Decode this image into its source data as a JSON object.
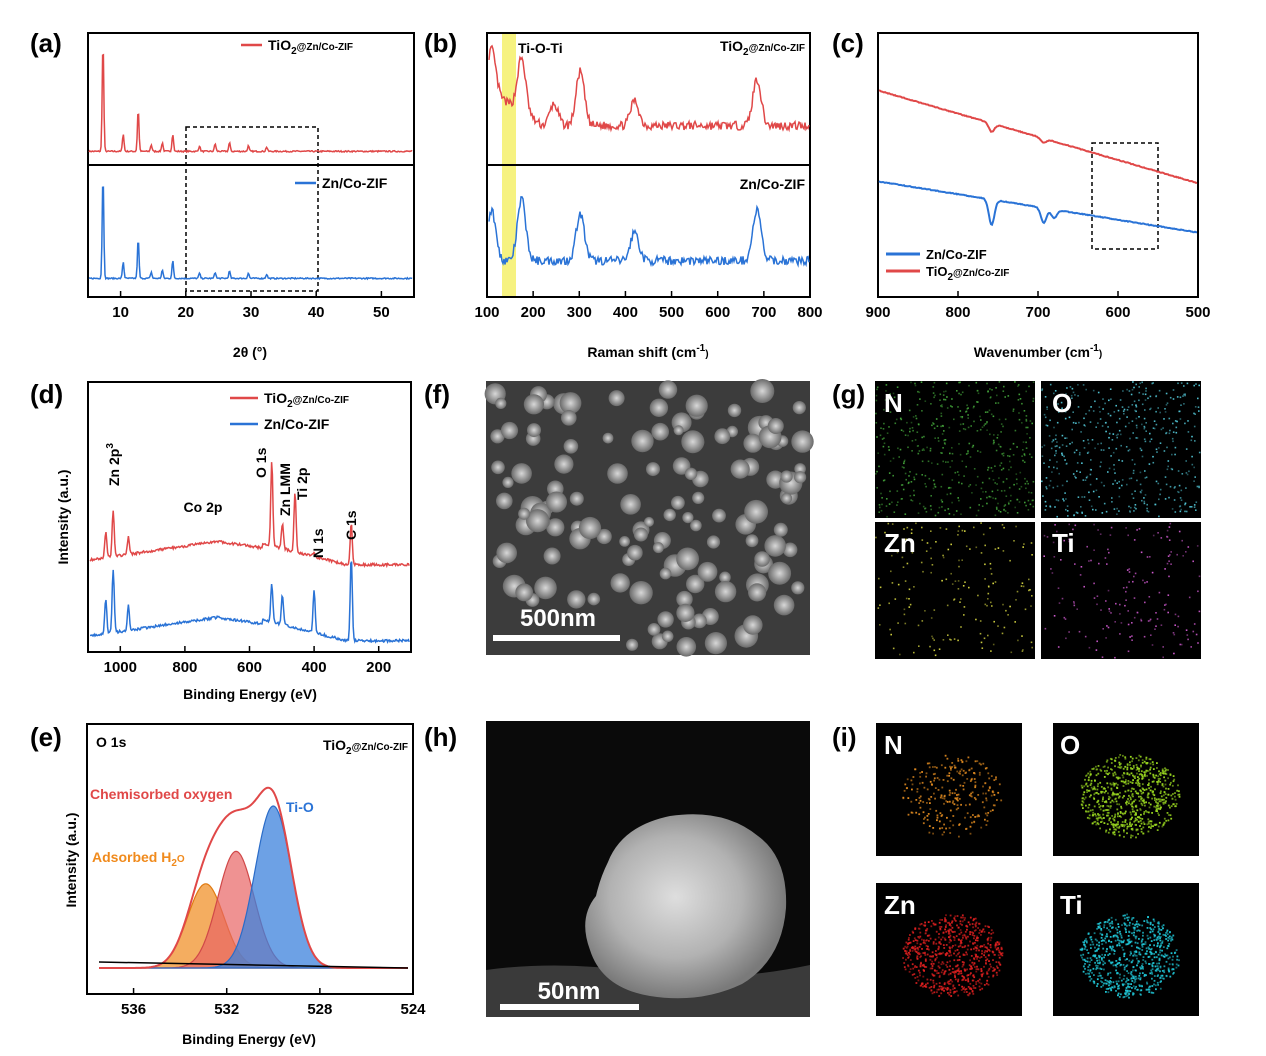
{
  "figure": {
    "panels": {
      "a": {
        "letter": "(a)",
        "legend": [
          "TiO2@Zn/Co-ZIF",
          "Zn/Co-ZIF"
        ],
        "xlabel": "2θ (°)"
      },
      "b": {
        "letter": "(b)",
        "annotation": "Ti-O-Ti",
        "label_top": "TiO2@Zn/Co-ZIF",
        "label_bottom": "Zn/Co-ZIF",
        "xlabel": "Raman shift (cm-1)"
      },
      "c": {
        "letter": "(c)",
        "legend": [
          "Zn/Co-ZIF",
          "TiO2@Zn/Co-ZIF"
        ],
        "xlabel": "Wavenumber (cm-1)"
      },
      "d": {
        "letter": "(d)",
        "legend": [
          "TiO2@Zn/Co-ZIF",
          "Zn/Co-ZIF"
        ],
        "xlabel": "Binding Energy (eV)",
        "ylabel": "Intensity (a.u.)",
        "peak_labels": [
          "Zn 2p3",
          "Co 2p",
          "O 1s",
          "Zn LMM",
          "Ti 2p",
          "N 1s",
          "C 1s"
        ]
      },
      "e": {
        "letter": "(e)",
        "corner_left": "O 1s",
        "corner_right": "TiO2@Zn/Co-ZIF",
        "xlabel": "Binding Energy (eV)",
        "ylabel": "Intensity (a.u.)",
        "labels": [
          "Chemisorbed oxygen",
          "Ti-O",
          "Adsorbed H2O"
        ]
      },
      "f": {
        "letter": "(f)",
        "scalebar": "500nm"
      },
      "g": {
        "letter": "(g)",
        "maps": [
          "N",
          "O",
          "Zn",
          "Ti"
        ]
      },
      "h": {
        "letter": "(h)",
        "scalebar": "50nm"
      },
      "i": {
        "letter": "(i)",
        "maps": [
          "N",
          "O",
          "Zn",
          "Ti"
        ]
      }
    },
    "colors": {
      "red": "#e04848",
      "blue": "#2a73d6",
      "highlight": "#f5f06a",
      "orange": "#f08a1c",
      "map_g": [
        "#43a33a",
        "#52c6d6",
        "#d8d842",
        "#d05ad0"
      ],
      "map_i": [
        "#e08a20",
        "#9ad820",
        "#e02020",
        "#20c8d8"
      ]
    }
  },
  "chart_data": [
    {
      "type": "line",
      "panel": "a",
      "xlabel": "2θ (°)",
      "xlim": [
        5,
        55
      ],
      "xticks": [
        10,
        20,
        30,
        40,
        50
      ],
      "series": [
        {
          "name": "TiO2@Zn/Co-ZIF",
          "peaks": [
            [
              7.3,
              1.0
            ],
            [
              10.4,
              0.16
            ],
            [
              12.7,
              0.38
            ],
            [
              14.7,
              0.06
            ],
            [
              16.4,
              0.08
            ],
            [
              18.0,
              0.16
            ],
            [
              22.1,
              0.05
            ],
            [
              24.5,
              0.07
            ],
            [
              26.7,
              0.08
            ],
            [
              29.6,
              0.05
            ],
            [
              32.4,
              0.04
            ]
          ]
        },
        {
          "name": "Zn/Co-ZIF",
          "peaks": [
            [
              7.3,
              1.0
            ],
            [
              10.4,
              0.16
            ],
            [
              12.7,
              0.38
            ],
            [
              14.7,
              0.06
            ],
            [
              16.4,
              0.08
            ],
            [
              18.0,
              0.17
            ],
            [
              22.1,
              0.05
            ],
            [
              24.5,
              0.06
            ],
            [
              26.7,
              0.07
            ],
            [
              29.6,
              0.05
            ],
            [
              32.4,
              0.04
            ]
          ]
        }
      ]
    },
    {
      "type": "line",
      "panel": "b",
      "xlabel": "Raman shift (cm-1)",
      "xlim": [
        100,
        800
      ],
      "xticks": [
        100,
        200,
        300,
        400,
        500,
        600,
        700,
        800
      ],
      "series": [
        {
          "name": "TiO2@Zn/Co-ZIF",
          "peaks": [
            [
              110,
              0.6
            ],
            [
              175,
              0.75
            ],
            [
              245,
              0.3
            ],
            [
              302,
              0.75
            ],
            [
              420,
              0.35
            ],
            [
              685,
              0.65
            ]
          ]
        },
        {
          "name": "Zn/Co-ZIF",
          "peaks": [
            [
              110,
              0.7
            ],
            [
              175,
              0.85
            ],
            [
              302,
              0.65
            ],
            [
              420,
              0.4
            ],
            [
              685,
              0.7
            ]
          ]
        }
      ]
    },
    {
      "type": "line",
      "panel": "c",
      "xlabel": "Wavenumber (cm-1)",
      "xlim": [
        900,
        500
      ],
      "xticks": [
        900,
        800,
        700,
        600,
        500
      ],
      "series": [
        {
          "name": "Zn/Co-ZIF",
          "dips": [
            [
              758,
              0.6
            ],
            [
              693,
              0.35
            ],
            [
              680,
              0.2
            ]
          ]
        },
        {
          "name": "TiO2@Zn/Co-ZIF",
          "dips": [
            [
              758,
              0.2
            ],
            [
              693,
              0.1
            ]
          ]
        }
      ]
    },
    {
      "type": "line",
      "panel": "d",
      "xlabel": "Binding Energy (eV)",
      "xlim": [
        1100,
        100
      ],
      "xticks": [
        1000,
        800,
        600,
        400,
        200
      ],
      "series": [
        {
          "name": "TiO2@Zn/Co-ZIF",
          "peaks": [
            [
              1045,
              0.3
            ],
            [
              1022,
              0.55
            ],
            [
              975,
              0.2
            ],
            [
              531,
              1.0
            ],
            [
              498,
              0.3
            ],
            [
              459,
              0.7
            ],
            [
              400,
              0.05
            ],
            [
              285,
              0.5
            ]
          ]
        },
        {
          "name": "Zn/Co-ZIF",
          "peaks": [
            [
              1045,
              0.4
            ],
            [
              1022,
              0.75
            ],
            [
              975,
              0.3
            ],
            [
              531,
              0.45
            ],
            [
              498,
              0.35
            ],
            [
              400,
              0.5
            ],
            [
              285,
              1.0
            ]
          ]
        }
      ]
    },
    {
      "type": "line",
      "panel": "e",
      "xlabel": "Binding Energy (eV)",
      "xlim": [
        538,
        524
      ],
      "xticks": [
        536,
        532,
        528,
        524
      ],
      "series": [
        {
          "name": "Adsorbed H2O",
          "center": 532.9,
          "height": 0.52
        },
        {
          "name": "Chemisorbed oxygen",
          "center": 531.6,
          "height": 0.72
        },
        {
          "name": "Ti-O",
          "center": 530.0,
          "height": 1.0
        }
      ]
    }
  ]
}
